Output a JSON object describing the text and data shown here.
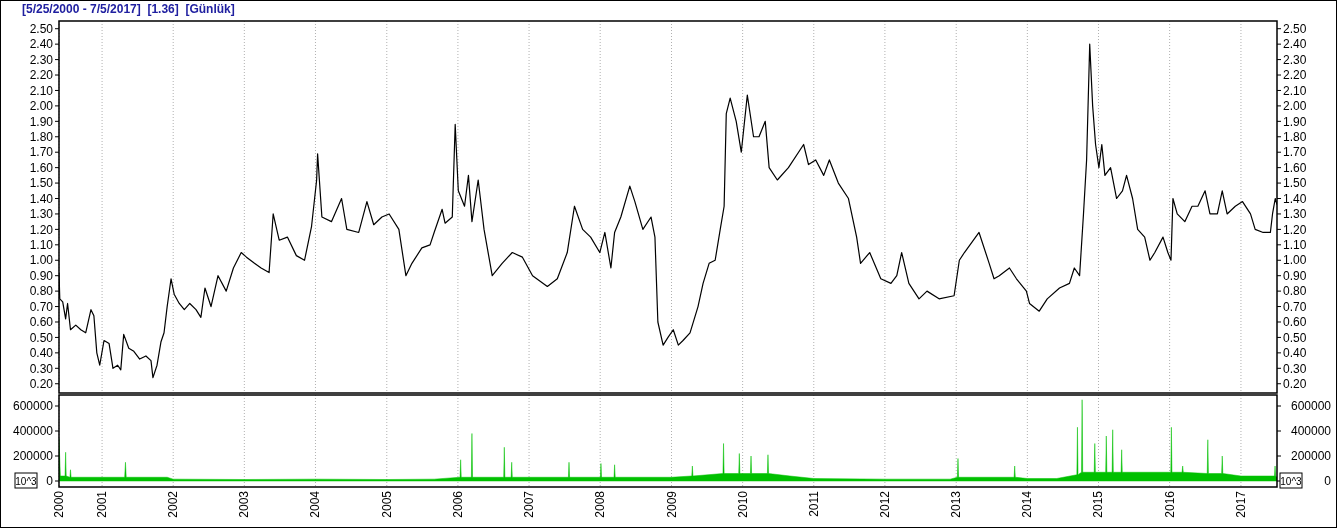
{
  "chart_data": [
    {
      "type": "line",
      "title": "[5/25/2000 - 7/5/2017]  [1.36]  [Günlük]",
      "grid": "x",
      "tick_labels": "y",
      "xlim": [
        "2000-05-25",
        "2017-07-05"
      ],
      "xticks": [
        {
          "value": "2000-05-25",
          "label": null
        },
        {
          "value": "2001-01-01",
          "label": null
        },
        {
          "value": "2002-01-01",
          "label": null
        },
        {
          "value": "2003-01-01",
          "label": null
        },
        {
          "value": "2004-01-01",
          "label": null
        },
        {
          "value": "2005-01-01",
          "label": null
        },
        {
          "value": "2006-01-01",
          "label": null
        },
        {
          "value": "2007-01-01",
          "label": null
        },
        {
          "value": "2008-01-01",
          "label": null
        },
        {
          "value": "2009-01-01",
          "label": null
        },
        {
          "value": "2010-01-01",
          "label": null
        },
        {
          "value": "2011-01-01",
          "label": null
        },
        {
          "value": "2012-01-01",
          "label": null
        },
        {
          "value": "2013-01-01",
          "label": null
        },
        {
          "value": "2014-01-01",
          "label": null
        },
        {
          "value": "2015-01-01",
          "label": null
        },
        {
          "value": "2016-01-01",
          "label": null
        },
        {
          "value": "2017-01-01",
          "label": null
        }
      ],
      "ylim": [
        0.14,
        2.55
      ],
      "yticks": [
        {
          "value": 0.2,
          "label": "0.20"
        },
        {
          "value": 0.3,
          "label": "0.30"
        },
        {
          "value": 0.4,
          "label": "0.40"
        },
        {
          "value": 0.5,
          "label": "0.50"
        },
        {
          "value": 0.6,
          "label": "0.60"
        },
        {
          "value": 0.7,
          "label": "0.70"
        },
        {
          "value": 0.8,
          "label": "0.80"
        },
        {
          "value": 0.9,
          "label": "0.90"
        },
        {
          "value": 1,
          "label": "1.00"
        },
        {
          "value": 1.1,
          "label": "1.10"
        },
        {
          "value": 1.2,
          "label": "1.20"
        },
        {
          "value": 1.3,
          "label": "1.30"
        },
        {
          "value": 1.4,
          "label": "1.40"
        },
        {
          "value": 1.5,
          "label": "1.50"
        },
        {
          "value": 1.6,
          "label": "1.60"
        },
        {
          "value": 1.7,
          "label": "1.70"
        },
        {
          "value": 1.8,
          "label": "1.80"
        },
        {
          "value": 1.9,
          "label": "1.90"
        },
        {
          "value": 2,
          "label": "2.00"
        },
        {
          "value": 2.1,
          "label": "2.10"
        },
        {
          "value": 2.2,
          "label": "2.20"
        },
        {
          "value": 2.3,
          "label": "2.30"
        },
        {
          "value": 2.4,
          "label": "2.40"
        },
        {
          "value": 2.5,
          "label": "2.50"
        }
      ],
      "y2lim": [
        0.14,
        2.55
      ],
      "y2ticks": [
        {
          "value": 0.2,
          "label": "0.20"
        },
        {
          "value": 0.3,
          "label": "0.30"
        },
        {
          "value": 0.4,
          "label": "0.40"
        },
        {
          "value": 0.5,
          "label": "0.50"
        },
        {
          "value": 0.6,
          "label": "0.60"
        },
        {
          "value": 0.7,
          "label": "0.70"
        },
        {
          "value": 0.8,
          "label": "0.80"
        },
        {
          "value": 0.9,
          "label": "0.90"
        },
        {
          "value": 1,
          "label": "1.00"
        },
        {
          "value": 1.1,
          "label": "1.10"
        },
        {
          "value": 1.2,
          "label": "1.20"
        },
        {
          "value": 1.3,
          "label": "1.30"
        },
        {
          "value": 1.4,
          "label": "1.40"
        },
        {
          "value": 1.5,
          "label": "1.50"
        },
        {
          "value": 1.6,
          "label": "1.60"
        },
        {
          "value": 1.7,
          "label": "1.70"
        },
        {
          "value": 1.8,
          "label": "1.80"
        },
        {
          "value": 1.9,
          "label": "1.90"
        },
        {
          "value": 2,
          "label": "2.00"
        },
        {
          "value": 2.1,
          "label": "2.10"
        },
        {
          "value": 2.2,
          "label": "2.20"
        },
        {
          "value": 2.3,
          "label": "2.30"
        },
        {
          "value": 2.4,
          "label": "2.40"
        },
        {
          "value": 2.5,
          "label": "2.50"
        }
      ],
      "series": [
        {
          "color": "#000000",
          "x": [
            "2000-05-25",
            "2000-05-29",
            "2000-06-13",
            "2000-06-28",
            "2000-07-08",
            "2000-07-23",
            "2000-08-19",
            "2000-09-14",
            "2000-10-09",
            "2000-11-05",
            "2000-11-20",
            "2000-12-05",
            "2000-12-20",
            "2001-01-11",
            "2001-02-06",
            "2001-02-26",
            "2001-03-22",
            "2001-04-07",
            "2001-04-22",
            "2001-05-18",
            "2001-06-13",
            "2001-07-13",
            "2001-08-14",
            "2001-09-09",
            "2001-09-19",
            "2001-10-10",
            "2001-10-30",
            "2001-11-15",
            "2001-12-01",
            "2001-12-21",
            "2002-01-06",
            "2002-02-01",
            "2002-02-27",
            "2002-03-27",
            "2002-04-28",
            "2002-05-23",
            "2002-06-13",
            "2002-07-14",
            "2002-08-19",
            "2002-09-30",
            "2002-11-06",
            "2002-12-16",
            "2003-01-12",
            "2003-02-22",
            "2003-03-28",
            "2003-05-08",
            "2003-05-29",
            "2003-06-29",
            "2003-08-10",
            "2003-09-25",
            "2003-11-06",
            "2003-12-12",
            "2004-01-07",
            "2004-01-12",
            "2004-02-03",
            "2004-03-23",
            "2004-05-14",
            "2004-06-10",
            "2004-08-10",
            "2004-09-21",
            "2004-10-26",
            "2004-12-07",
            "2005-01-13",
            "2005-03-04",
            "2005-04-09",
            "2005-05-10",
            "2005-06-30",
            "2005-08-11",
            "2005-09-01",
            "2005-10-12",
            "2005-10-27",
            "2005-12-03",
            "2005-12-18",
            "2006-01-03",
            "2006-02-04",
            "2006-02-24",
            "2006-03-14",
            "2006-04-15",
            "2006-05-15",
            "2006-06-26",
            "2006-08-16",
            "2006-10-07",
            "2006-11-28",
            "2007-01-19",
            "2007-04-05",
            "2007-05-26",
            "2007-07-16",
            "2007-08-22",
            "2007-10-03",
            "2007-11-13",
            "2007-12-30",
            "2008-01-25",
            "2008-02-25",
            "2008-03-15",
            "2008-04-16",
            "2008-06-01",
            "2008-06-27",
            "2008-08-07",
            "2008-09-18",
            "2008-10-08",
            "2008-10-23",
            "2008-11-19",
            "2008-12-14",
            "2009-01-10",
            "2009-02-05",
            "2009-03-01",
            "2009-04-06",
            "2009-05-17",
            "2009-06-12",
            "2009-07-13",
            "2009-08-13",
            "2009-09-08",
            "2009-09-28",
            "2009-10-09",
            "2009-10-29",
            "2009-11-29",
            "2009-12-25",
            "2010-01-25",
            "2010-02-26",
            "2010-03-26",
            "2010-04-27",
            "2010-05-17",
            "2010-06-28",
            "2010-08-24",
            "2010-11-10",
            "2010-12-05",
            "2011-01-11",
            "2011-02-21",
            "2011-03-22",
            "2011-05-07",
            "2011-06-28",
            "2011-08-09",
            "2011-08-29",
            "2011-10-15",
            "2011-12-11",
            "2012-02-01",
            "2012-03-02",
            "2012-03-27",
            "2012-05-03",
            "2012-06-24",
            "2012-08-04",
            "2012-10-05",
            "2012-12-21",
            "2013-01-17",
            "2013-02-12",
            "2013-04-28",
            "2013-06-19",
            "2013-07-14",
            "2013-08-10",
            "2013-10-01",
            "2013-11-06",
            "2013-12-27",
            "2014-01-12",
            "2014-03-03",
            "2014-04-13",
            "2014-06-15",
            "2014-08-05",
            "2014-08-30",
            "2014-09-26",
            "2014-10-16",
            "2014-11-01",
            "2014-11-17",
            "2014-12-02",
            "2014-12-17",
            "2015-01-03",
            "2015-01-18",
            "2015-02-03",
            "2015-03-04",
            "2015-04-04",
            "2015-05-04",
            "2015-05-25",
            "2015-06-25",
            "2015-07-21",
            "2015-08-26",
            "2015-09-22",
            "2015-10-17",
            "2015-11-28",
            "2015-12-23",
            "2016-01-08",
            "2016-01-18",
            "2016-02-09",
            "2016-03-19",
            "2016-04-25",
            "2016-05-25",
            "2016-07-01",
            "2016-07-26",
            "2016-09-02",
            "2016-09-27",
            "2016-10-22",
            "2016-12-03",
            "2017-01-09",
            "2017-02-19",
            "2017-03-15",
            "2017-04-25",
            "2017-06-01",
            "2017-06-12",
            "2017-06-26",
            "2017-07-05"
          ],
          "values": [
            0.92,
            0.75,
            0.73,
            0.62,
            0.72,
            0.55,
            0.58,
            0.55,
            0.53,
            0.68,
            0.64,
            0.4,
            0.32,
            0.48,
            0.46,
            0.3,
            0.32,
            0.29,
            0.52,
            0.43,
            0.41,
            0.36,
            0.38,
            0.35,
            0.24,
            0.32,
            0.47,
            0.53,
            0.7,
            0.88,
            0.78,
            0.72,
            0.68,
            0.72,
            0.68,
            0.63,
            0.82,
            0.7,
            0.9,
            0.8,
            0.95,
            1.05,
            1.02,
            0.98,
            0.95,
            0.92,
            1.3,
            1.13,
            1.15,
            1.03,
            1.0,
            1.22,
            1.52,
            1.69,
            1.28,
            1.25,
            1.4,
            1.2,
            1.18,
            1.38,
            1.23,
            1.28,
            1.3,
            1.2,
            0.9,
            0.98,
            1.08,
            1.1,
            1.18,
            1.33,
            1.24,
            1.28,
            1.88,
            1.45,
            1.35,
            1.55,
            1.25,
            1.52,
            1.2,
            0.9,
            0.98,
            1.05,
            1.02,
            0.9,
            0.83,
            0.88,
            1.05,
            1.35,
            1.2,
            1.15,
            1.05,
            1.18,
            0.95,
            1.18,
            1.28,
            1.48,
            1.38,
            1.2,
            1.28,
            1.15,
            0.6,
            0.45,
            0.5,
            0.55,
            0.45,
            0.48,
            0.53,
            0.7,
            0.85,
            0.98,
            1.0,
            1.2,
            1.35,
            1.95,
            2.05,
            1.9,
            1.7,
            2.07,
            1.8,
            1.8,
            1.9,
            1.6,
            1.52,
            1.6,
            1.75,
            1.62,
            1.65,
            1.55,
            1.65,
            1.5,
            1.4,
            1.15,
            0.98,
            1.05,
            0.88,
            0.85,
            0.9,
            1.05,
            0.85,
            0.75,
            0.8,
            0.75,
            0.77,
            1.0,
            1.05,
            1.18,
            0.98,
            0.88,
            0.9,
            0.95,
            0.88,
            0.8,
            0.72,
            0.67,
            0.75,
            0.82,
            0.85,
            0.95,
            0.9,
            1.3,
            1.65,
            2.4,
            2.0,
            1.75,
            1.6,
            1.75,
            1.55,
            1.6,
            1.4,
            1.45,
            1.55,
            1.4,
            1.2,
            1.15,
            1.0,
            1.05,
            1.15,
            1.05,
            1.0,
            1.4,
            1.3,
            1.25,
            1.35,
            1.35,
            1.45,
            1.3,
            1.3,
            1.45,
            1.3,
            1.35,
            1.38,
            1.3,
            1.2,
            1.18,
            1.18,
            1.3,
            1.4,
            1.36
          ]
        }
      ]
    },
    {
      "type": "area",
      "grid": "x",
      "ylabel": "10^3",
      "y2label": "10^3",
      "xlim": [
        "2000-05-25",
        "2017-07-05"
      ],
      "xticks": [
        {
          "value": "2000-05-25",
          "label": "2000"
        },
        {
          "value": "2001-01-01",
          "label": "2001"
        },
        {
          "value": "2002-01-01",
          "label": "2002"
        },
        {
          "value": "2003-01-01",
          "label": "2003"
        },
        {
          "value": "2004-01-01",
          "label": "2004"
        },
        {
          "value": "2005-01-01",
          "label": "2005"
        },
        {
          "value": "2006-01-01",
          "label": "2006"
        },
        {
          "value": "2007-01-01",
          "label": "2007"
        },
        {
          "value": "2008-01-01",
          "label": "2008"
        },
        {
          "value": "2009-01-01",
          "label": "2009"
        },
        {
          "value": "2010-01-01",
          "label": "2010"
        },
        {
          "value": "2011-01-01",
          "label": "2011"
        },
        {
          "value": "2012-01-01",
          "label": "2012"
        },
        {
          "value": "2013-01-01",
          "label": "2013"
        },
        {
          "value": "2014-01-01",
          "label": "2014"
        },
        {
          "value": "2015-01-01",
          "label": "2015"
        },
        {
          "value": "2016-01-01",
          "label": "2016"
        },
        {
          "value": "2017-01-01",
          "label": "2017"
        }
      ],
      "ylim": [
        -48000,
        688000
      ],
      "yticks": [
        0,
        200000,
        400000,
        600000
      ],
      "y2lim": [
        -48000,
        688000
      ],
      "y2ticks": [
        0,
        200000,
        400000,
        600000
      ],
      "series": [
        {
          "color": "#00c000",
          "x": [
            "2000-05-25",
            "2000-06-01",
            "2000-06-25",
            "2000-06-28",
            "2000-07-01",
            "2000-07-20",
            "2000-07-23",
            "2000-07-26",
            "2001-04-27",
            "2001-05-01",
            "2001-05-05",
            "2001-12-01",
            "2002-01-01",
            "2003-01-01",
            "2004-01-01",
            "2005-01-01",
            "2005-09-01",
            "2006-01-12",
            "2006-01-15",
            "2006-01-18",
            "2006-03-11",
            "2006-03-14",
            "2006-03-17",
            "2006-08-24",
            "2006-08-27",
            "2006-08-30",
            "2006-10-01",
            "2006-10-04",
            "2006-10-07",
            "2007-07-22",
            "2007-07-25",
            "2007-07-28",
            "2008-01-02",
            "2008-01-05",
            "2008-01-08",
            "2008-03-12",
            "2008-03-15",
            "2008-03-18",
            "2009-01-01",
            "2009-04-15",
            "2009-04-18",
            "2009-04-21",
            "2009-09-22",
            "2009-09-25",
            "2009-09-28",
            "2009-12-12",
            "2009-12-15",
            "2009-12-18",
            "2010-02-10",
            "2010-02-13",
            "2010-02-16",
            "2010-05-08",
            "2010-05-11",
            "2010-05-14",
            "2010-09-01",
            "2011-01-01",
            "2012-01-01",
            "2012-12-01",
            "2013-01-07",
            "2013-01-10",
            "2013-01-13",
            "2013-10-25",
            "2013-10-28",
            "2013-10-31",
            "2014-01-01",
            "2014-06-01",
            "2014-09-12",
            "2014-09-15",
            "2014-09-18",
            "2014-10-06",
            "2014-10-09",
            "2014-10-12",
            "2014-12-10",
            "2014-12-13",
            "2014-12-16",
            "2015-02-07",
            "2015-02-10",
            "2015-02-13",
            "2015-03-12",
            "2015-03-15",
            "2015-03-18",
            "2015-04-27",
            "2015-04-30",
            "2015-05-03",
            "2016-01-07",
            "2016-01-10",
            "2016-01-13",
            "2016-03-05",
            "2016-03-08",
            "2016-03-11",
            "2016-07-12",
            "2016-07-15",
            "2016-07-18",
            "2016-09-24",
            "2016-09-27",
            "2016-09-30",
            "2017-01-01",
            "2017-06-22",
            "2017-06-25",
            "2017-06-28",
            "2017-07-05"
          ],
          "values": [
            340000,
            40000,
            40000,
            230000,
            40000,
            30000,
            90000,
            30000,
            30000,
            150000,
            30000,
            30000,
            15000,
            12000,
            15000,
            12000,
            15000,
            30000,
            170000,
            30000,
            30000,
            380000,
            30000,
            30000,
            270000,
            30000,
            30000,
            150000,
            30000,
            30000,
            150000,
            30000,
            30000,
            140000,
            30000,
            30000,
            130000,
            30000,
            30000,
            40000,
            120000,
            40000,
            60000,
            300000,
            60000,
            60000,
            220000,
            60000,
            60000,
            200000,
            60000,
            60000,
            210000,
            60000,
            40000,
            20000,
            15000,
            15000,
            30000,
            180000,
            30000,
            30000,
            120000,
            30000,
            20000,
            20000,
            50000,
            430000,
            50000,
            70000,
            650000,
            70000,
            70000,
            300000,
            70000,
            70000,
            360000,
            70000,
            70000,
            410000,
            70000,
            70000,
            250000,
            70000,
            70000,
            430000,
            70000,
            70000,
            120000,
            70000,
            60000,
            330000,
            60000,
            60000,
            200000,
            60000,
            40000,
            40000,
            120000,
            40000,
            30000
          ]
        }
      ]
    }
  ]
}
